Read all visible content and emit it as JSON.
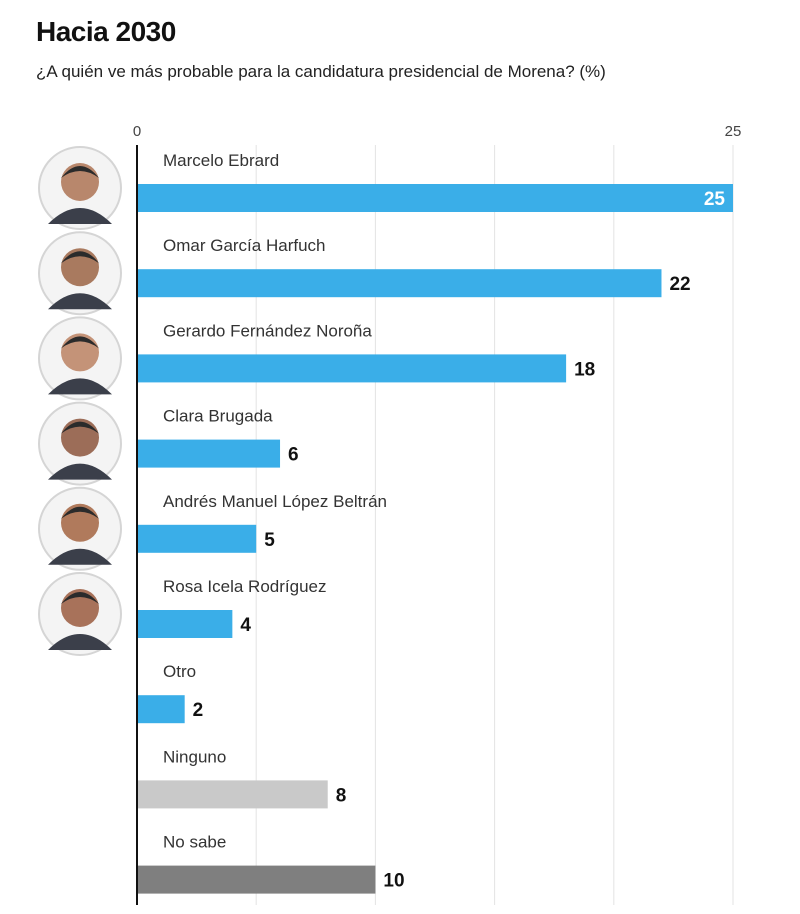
{
  "header": {
    "title": "Hacia 2030",
    "subtitle": "¿A quién ve más probable para la candidatura presidencial de Morena? (%)"
  },
  "chart_data": {
    "type": "bar",
    "orientation": "horizontal",
    "title": "Hacia 2030",
    "subtitle": "¿A quién ve más probable para la candidatura presidencial de Morena? (%)",
    "xlim": [
      0,
      25
    ],
    "x_ticks": [
      0,
      25
    ],
    "grid": true,
    "categories": [
      "Marcelo Ebrard",
      "Omar García Harfuch",
      "Gerardo Fernández Noroña",
      "Clara Brugada",
      "Andrés Manuel López Beltrán",
      "Rosa Icela Rodríguez",
      "Otro",
      "Ninguno",
      "No sabe"
    ],
    "values": [
      25,
      22,
      18,
      6,
      5,
      4,
      2,
      8,
      10
    ],
    "bar_colors": [
      "#3aaee8",
      "#3aaee8",
      "#3aaee8",
      "#3aaee8",
      "#3aaee8",
      "#3aaee8",
      "#3aaee8",
      "#c9c9c9",
      "#7f7f7f"
    ],
    "value_label_inside_first": true,
    "portraits": [
      "person-portrait",
      "person-portrait",
      "person-portrait",
      "person-portrait",
      "person-portrait",
      "person-portrait"
    ]
  }
}
